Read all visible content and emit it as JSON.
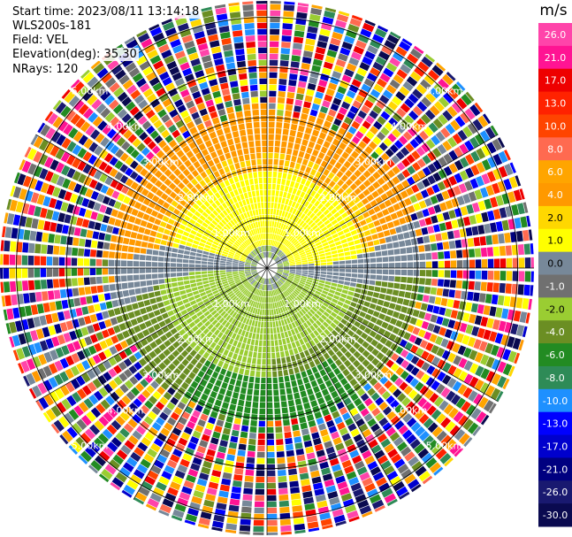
{
  "header": {
    "start_time": "Start time: 2023/08/11 13:14:18",
    "instrument": "WLS200s-181",
    "field": "Field: VEL",
    "elevation": "Elevation(deg): 35.30",
    "nrays": "NRays: 120"
  },
  "chart_data": {
    "type": "heatmap",
    "projection": "polar PPI",
    "n_rays": 120,
    "range_rings_km": [
      1,
      2,
      3,
      4,
      5
    ],
    "ring_labels": [
      "1.00km",
      "2.00km",
      "3.00km",
      "4.00km",
      "5.00km"
    ],
    "spoke_count": 12,
    "colorbar": {
      "unit": "m/s",
      "levels": [
        "26.0",
        "21.0",
        "17.0",
        "13.0",
        "10.0",
        "8.0",
        "6.0",
        "4.0",
        "2.0",
        "1.0",
        "0.0",
        "-1.0",
        "-2.0",
        "-4.0",
        "-6.0",
        "-8.0",
        "-10.0",
        "-13.0",
        "-17.0",
        "-21.0",
        "-26.0",
        "-30.0"
      ],
      "colors": [
        "#ff44aa",
        "#ff1493",
        "#ee0000",
        "#ff2200",
        "#ff4400",
        "#ff6a50",
        "#ffa500",
        "#ff9900",
        "#ffd700",
        "#ffff00",
        "#778899",
        "#707070",
        "#9acd32",
        "#6b8e23",
        "#228b22",
        "#2e8b57",
        "#1e90ff",
        "#0000ff",
        "#0000cd",
        "#000080",
        "#191970",
        "#0a0a50"
      ]
    },
    "pattern": {
      "near_range_km": 0.6,
      "valid_range_km": 4.2,
      "far_noise": "random colors beyond valid range",
      "upper_half": "positive velocity: yellow (2 m/s) near, orange (4-6 m/s) farther",
      "lower_half": "negative velocity: yellow-green/olive (-2 to -4 m/s), green (-6 m/s) far",
      "zero_line": "grey band along roughly east-west axis"
    }
  }
}
